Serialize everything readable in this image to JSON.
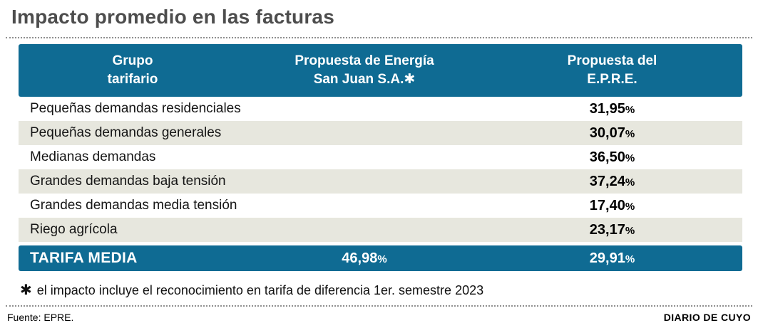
{
  "title": "Impacto promedio en las facturas",
  "pct_sign": "%",
  "table": {
    "header": {
      "col1": [
        "Grupo",
        "tarifario"
      ],
      "col2": [
        "Propuesta de Energía",
        "San Juan S.A.✱"
      ],
      "col3": [
        "Propuesta del",
        "E.P.R.E."
      ]
    },
    "rows": [
      {
        "label": "Pequeñas demandas residenciales",
        "epre": "31,95"
      },
      {
        "label": "Pequeñas demandas generales",
        "epre": "30,07"
      },
      {
        "label": "Medianas demandas",
        "epre": "36,50"
      },
      {
        "label": "Grandes demandas baja tensión",
        "epre": "37,24"
      },
      {
        "label": "Grandes demandas media tensión",
        "epre": "17,40"
      },
      {
        "label": "Riego agrícola",
        "epre": "23,17"
      }
    ],
    "total": {
      "label": "TARIFA MEDIA",
      "esj": "46,98",
      "epre": "29,91"
    }
  },
  "note": {
    "asterisk": "✱",
    "text": "el impacto incluye el reconocimiento en tarifa de diferencia 1er. semestre 2023"
  },
  "footer": {
    "source": "Fuente: EPRE.",
    "credit": "DIARIO DE CUYO"
  },
  "colors": {
    "header_bg": "#0f6b93",
    "row_alt_bg": "#e7e7de"
  },
  "chart_data": {
    "type": "table",
    "title": "Impacto promedio en las facturas",
    "columns": [
      "Grupo tarifario",
      "Propuesta de Energía San Juan S.A.*",
      "Propuesta del E.P.R.E."
    ],
    "rows": [
      [
        "Pequeñas demandas residenciales",
        null,
        "31,95%"
      ],
      [
        "Pequeñas demandas generales",
        null,
        "30,07%"
      ],
      [
        "Medianas demandas",
        null,
        "36,50%"
      ],
      [
        "Grandes demandas baja tensión",
        null,
        "37,24%"
      ],
      [
        "Grandes demandas media tensión",
        null,
        "17,40%"
      ],
      [
        "Riego agrícola",
        null,
        "23,17%"
      ],
      [
        "TARIFA MEDIA",
        "46,98%",
        "29,91%"
      ]
    ],
    "footnote": "* el impacto incluye el reconocimiento en tarifa de diferencia 1er. semestre 2023",
    "source": "Fuente: EPRE."
  }
}
